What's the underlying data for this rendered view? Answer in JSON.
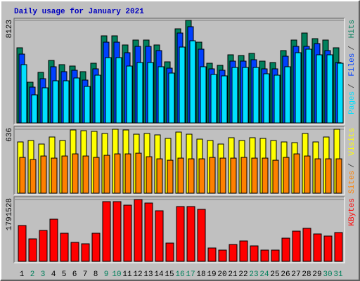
{
  "chart_data": [
    {
      "type": "bar",
      "title": "Daily usage for January 2021",
      "legend_separator": "/",
      "ylim": [
        0,
        8123
      ],
      "yticks": [
        8123
      ],
      "series": [
        {
          "name": "Hits",
          "color": "#00805c",
          "values": [
            5953,
            3227,
            4006,
            4952,
            4618,
            4507,
            4062,
            4729,
            6899,
            6899,
            6176,
            6565,
            6565,
            6176,
            4840,
            7455,
            8123,
            6398,
            4729,
            4562,
            5397,
            5341,
            5508,
            4896,
            4785,
            5731,
            6565,
            7121,
            6676,
            6565,
            5953
          ]
        },
        {
          "name": "Files",
          "color": "#0040ff",
          "values": [
            5452,
            2838,
            3505,
            4451,
            4062,
            4173,
            3394,
            4284,
            6398,
            6398,
            5564,
            6064,
            6064,
            5731,
            4340,
            7121,
            7622,
            5842,
            4284,
            4173,
            4896,
            4896,
            5007,
            4284,
            4284,
            5285,
            6064,
            6064,
            6287,
            5731,
            4785
          ]
        },
        {
          "name": "Pages",
          "color": "#00e0ff",
          "values": [
            4618,
            2225,
            2782,
            3338,
            3338,
            3561,
            2893,
            3783,
            5174,
            5174,
            4507,
            4785,
            4785,
            4451,
            3950,
            6009,
            6509,
            4451,
            3839,
            3728,
            4395,
            4395,
            4395,
            3894,
            3783,
            4451,
            5564,
            5842,
            5397,
            5397,
            4729
          ]
        }
      ]
    },
    {
      "type": "bar",
      "legend_separator": "/",
      "ylim": [
        0,
        636
      ],
      "yticks": [
        636
      ],
      "series": [
        {
          "name": "Visits",
          "color": "#ffff00",
          "values": [
            510,
            524,
            489,
            559,
            524,
            629,
            622,
            615,
            594,
            636,
            629,
            587,
            594,
            580,
            545,
            608,
            587,
            538,
            524,
            489,
            552,
            524,
            552,
            545,
            524,
            510,
            503,
            594,
            510,
            559,
            636
          ]
        },
        {
          "name": "Sites",
          "color": "#ff8000",
          "values": [
            356,
            335,
            370,
            349,
            370,
            391,
            370,
            356,
            377,
            391,
            391,
            398,
            363,
            342,
            328,
            349,
            342,
            342,
            356,
            349,
            349,
            356,
            349,
            349,
            328,
            356,
            391,
            370,
            342,
            342,
            342
          ]
        }
      ]
    },
    {
      "type": "bar",
      "ylim": [
        0,
        1791528
      ],
      "yticks": [
        1791528
      ],
      "categories": [
        "1",
        "2",
        "3",
        "4",
        "5",
        "6",
        "7",
        "8",
        "9",
        "10",
        "11",
        "12",
        "13",
        "14",
        "15",
        "16",
        "17",
        "18",
        "19",
        "20",
        "21",
        "22",
        "23",
        "24",
        "25",
        "26",
        "27",
        "28",
        "29",
        "30",
        "31"
      ],
      "category_label_colors": [
        "#000000",
        "#00805c",
        "#00805c",
        "#000000",
        "#000000",
        "#000000",
        "#000000",
        "#000000",
        "#00805c",
        "#00805c",
        "#000000",
        "#000000",
        "#000000",
        "#000000",
        "#000000",
        "#00805c",
        "#00805c",
        "#000000",
        "#000000",
        "#000000",
        "#000000",
        "#000000",
        "#00805c",
        "#00805c",
        "#000000",
        "#000000",
        "#000000",
        "#000000",
        "#000000",
        "#00805c",
        "#00805c"
      ],
      "series": [
        {
          "name": "KBytes",
          "color": "#ff0000",
          "values": [
            1038272,
            651465,
            895764,
            1221496,
            814331,
            549673,
            508957,
            814331,
            1730453,
            1730453,
            1628662,
            1791528,
            1689711,
            1465796,
            529315,
            1587946,
            1587946,
            1506511,
            386807,
            325732,
            488599,
            590390,
            447882,
            325732,
            325732,
            671823,
            875405,
            956838,
            793972,
            732898,
            834689
          ]
        }
      ]
    }
  ]
}
